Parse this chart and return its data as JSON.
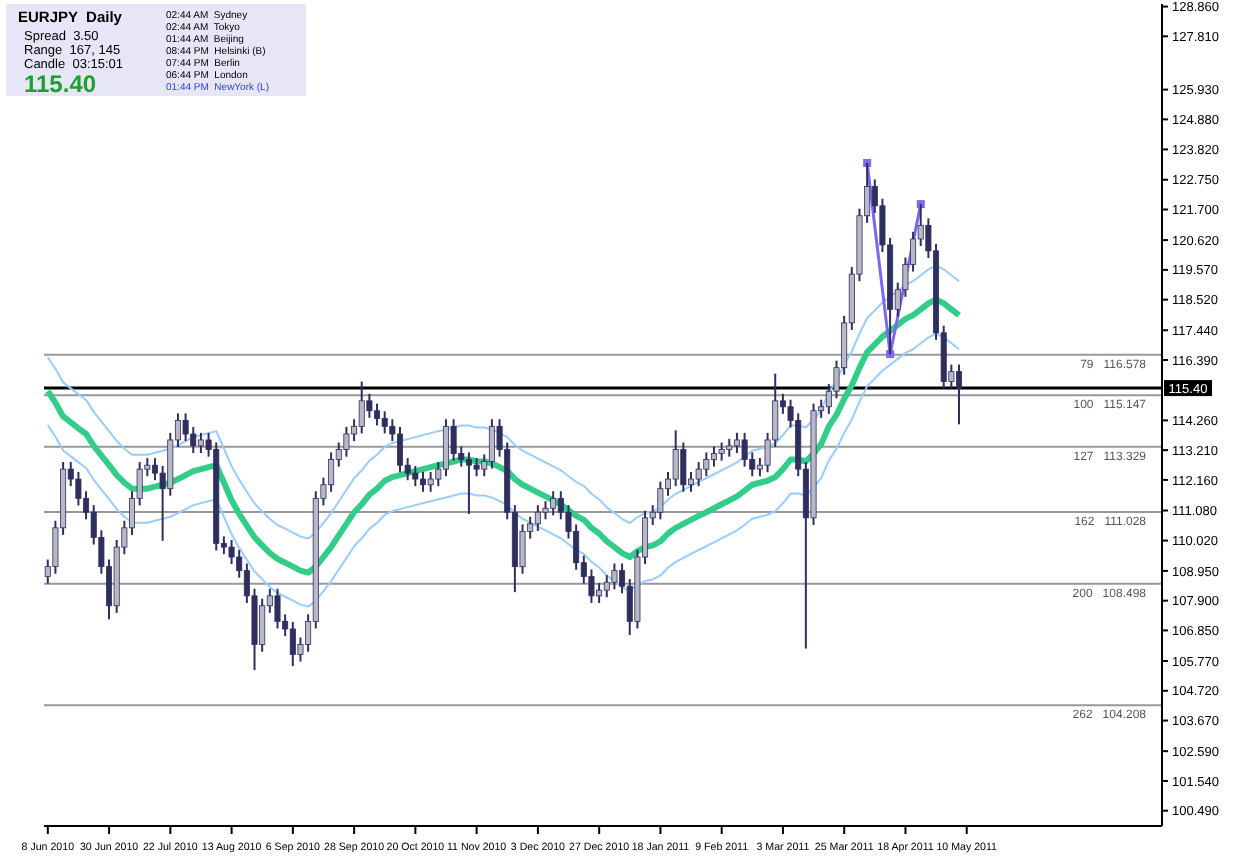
{
  "chart_data": {
    "type": "candlestick",
    "title": "EURJPY  Daily",
    "color": "#2f2f5f",
    "marker": "none",
    "annotations": [
      "Spread  3.50",
      "Range  167, 145",
      "Candle  03:15:01",
      "115.40",
      "02:44 AM  Sydney",
      "02:44 AM  Tokyo",
      "01:44 AM  Beijing",
      "08:44 PM  Helsinki (B)",
      "07:44 PM  Berlin",
      "06:44 PM  London",
      "01:44 PM  NewYork (L)"
    ],
    "categories": [
      "8 Jun 2010",
      null,
      null,
      null,
      null,
      null,
      null,
      null,
      "30 Jun 2010",
      null,
      null,
      null,
      null,
      null,
      null,
      null,
      "22 Jul 2010",
      null,
      null,
      null,
      null,
      null,
      null,
      null,
      "13 Aug 2010",
      null,
      null,
      null,
      null,
      null,
      null,
      null,
      "6 Sep 2010",
      null,
      null,
      null,
      null,
      null,
      null,
      null,
      "28 Sep 2010",
      null,
      null,
      null,
      null,
      null,
      null,
      null,
      "20 Oct 2010",
      null,
      null,
      null,
      null,
      null,
      null,
      null,
      "11 Nov 2010",
      null,
      null,
      null,
      null,
      null,
      null,
      null,
      "3 Dec 2010",
      null,
      null,
      null,
      null,
      null,
      null,
      null,
      "27 Dec 2010",
      null,
      null,
      null,
      null,
      null,
      null,
      null,
      "18 Jan 2011",
      null,
      null,
      null,
      null,
      null,
      null,
      null,
      "9 Feb 2011",
      null,
      null,
      null,
      null,
      null,
      null,
      null,
      "3 Mar 2011",
      null,
      null,
      null,
      null,
      null,
      null,
      null,
      "25 Mar 2011",
      null,
      null,
      null,
      null,
      null,
      null,
      null,
      "18 Apr 2011",
      null,
      null,
      null,
      null,
      null,
      null,
      null,
      "10 May 2011",
      null,
      null,
      null,
      null,
      null,
      null,
      null,
      null,
      null,
      null,
      null,
      null,
      null,
      null,
      null,
      null,
      null,
      null,
      null,
      null,
      null,
      null,
      null,
      null,
      null
    ],
    "ohlc": [
      [
        108.75,
        109.35,
        108.5,
        109.1
      ],
      [
        109.1,
        110.72,
        108.85,
        110.47
      ],
      [
        110.47,
        112.79,
        110.22,
        112.54
      ],
      [
        112.54,
        112.79,
        111.94,
        112.19
      ],
      [
        112.19,
        112.44,
        111.26,
        111.51
      ],
      [
        111.51,
        111.76,
        110.77,
        111.02
      ],
      [
        111.02,
        111.27,
        109.88,
        110.13
      ],
      [
        110.13,
        110.38,
        108.85,
        109.1
      ],
      [
        109.1,
        109.35,
        107.24,
        107.72
      ],
      [
        107.72,
        110.04,
        107.47,
        109.79
      ],
      [
        109.79,
        110.72,
        109.54,
        110.47
      ],
      [
        110.47,
        111.76,
        110.22,
        111.51
      ],
      [
        111.51,
        112.79,
        111.26,
        112.54
      ],
      [
        112.54,
        112.93,
        112.29,
        112.68
      ],
      [
        112.68,
        112.93,
        112.15,
        112.4
      ],
      [
        112.4,
        112.65,
        110.01,
        111.85
      ],
      [
        111.85,
        113.82,
        111.6,
        113.57
      ],
      [
        113.57,
        114.51,
        113.32,
        114.26
      ],
      [
        114.26,
        114.51,
        113.53,
        113.78
      ],
      [
        113.78,
        114.03,
        113.11,
        113.36
      ],
      [
        113.36,
        113.82,
        113.11,
        113.57
      ],
      [
        113.57,
        113.82,
        112.98,
        113.23
      ],
      [
        113.23,
        113.48,
        109.67,
        109.92
      ],
      [
        109.92,
        110.17,
        109.54,
        109.79
      ],
      [
        109.79,
        110.04,
        109.19,
        109.44
      ],
      [
        109.44,
        109.69,
        108.71,
        108.96
      ],
      [
        108.96,
        109.21,
        107.82,
        108.07
      ],
      [
        108.07,
        108.32,
        105.45,
        106.35
      ],
      [
        106.35,
        107.97,
        106.1,
        107.72
      ],
      [
        107.72,
        108.32,
        107.47,
        108.07
      ],
      [
        108.07,
        108.32,
        106.92,
        107.17
      ],
      [
        107.17,
        107.42,
        106.65,
        106.9
      ],
      [
        106.9,
        107.15,
        105.59,
        106.0
      ],
      [
        106.0,
        106.6,
        105.75,
        106.35
      ],
      [
        106.35,
        107.42,
        106.1,
        107.17
      ],
      [
        107.17,
        111.76,
        106.92,
        111.51
      ],
      [
        111.51,
        112.24,
        111.26,
        111.99
      ],
      [
        111.99,
        113.13,
        111.74,
        112.88
      ],
      [
        112.88,
        113.48,
        112.63,
        113.23
      ],
      [
        113.23,
        114.03,
        112.98,
        113.78
      ],
      [
        113.78,
        114.3,
        113.53,
        114.05
      ],
      [
        114.05,
        115.63,
        113.8,
        114.95
      ],
      [
        114.95,
        115.2,
        114.35,
        114.6
      ],
      [
        114.6,
        114.85,
        114.08,
        114.33
      ],
      [
        114.33,
        114.58,
        113.8,
        114.05
      ],
      [
        114.05,
        114.3,
        113.53,
        113.78
      ],
      [
        113.78,
        114.03,
        112.43,
        112.68
      ],
      [
        112.68,
        112.93,
        112.15,
        112.4
      ],
      [
        112.4,
        112.65,
        111.94,
        112.19
      ],
      [
        112.19,
        112.44,
        111.74,
        111.99
      ],
      [
        111.99,
        112.44,
        111.74,
        112.19
      ],
      [
        112.19,
        112.79,
        111.94,
        112.54
      ],
      [
        112.54,
        114.3,
        112.29,
        114.05
      ],
      [
        114.05,
        114.3,
        112.84,
        113.09
      ],
      [
        113.09,
        113.34,
        112.63,
        112.88
      ],
      [
        112.88,
        113.13,
        110.96,
        112.68
      ],
      [
        112.68,
        112.93,
        112.29,
        112.54
      ],
      [
        112.54,
        113.06,
        112.29,
        112.81
      ],
      [
        112.81,
        114.3,
        112.56,
        114.05
      ],
      [
        114.05,
        114.3,
        112.98,
        113.23
      ],
      [
        113.23,
        113.48,
        110.77,
        111.02
      ],
      [
        111.02,
        111.27,
        108.2,
        109.1
      ],
      [
        109.1,
        110.59,
        108.85,
        110.34
      ],
      [
        110.34,
        110.86,
        110.09,
        110.61
      ],
      [
        110.61,
        111.27,
        110.36,
        111.02
      ],
      [
        111.02,
        111.41,
        110.77,
        111.16
      ],
      [
        111.16,
        111.76,
        110.91,
        111.51
      ],
      [
        111.51,
        111.76,
        110.77,
        111.02
      ],
      [
        111.02,
        111.27,
        110.09,
        110.34
      ],
      [
        110.34,
        110.59,
        108.99,
        109.24
      ],
      [
        109.24,
        109.49,
        108.5,
        108.75
      ],
      [
        108.75,
        109.0,
        107.82,
        108.07
      ],
      [
        108.07,
        108.52,
        107.82,
        108.27
      ],
      [
        108.27,
        108.8,
        108.02,
        108.55
      ],
      [
        108.55,
        109.21,
        108.3,
        108.96
      ],
      [
        108.96,
        109.21,
        108.16,
        108.41
      ],
      [
        108.41,
        108.66,
        106.69,
        107.17
      ],
      [
        107.17,
        109.69,
        106.92,
        109.44
      ],
      [
        109.44,
        111.07,
        109.19,
        110.82
      ],
      [
        110.82,
        111.27,
        110.57,
        111.02
      ],
      [
        111.02,
        112.1,
        110.77,
        111.85
      ],
      [
        111.85,
        112.44,
        111.6,
        112.19
      ],
      [
        112.19,
        113.91,
        111.94,
        113.23
      ],
      [
        113.23,
        113.48,
        111.74,
        111.99
      ],
      [
        111.99,
        112.44,
        111.74,
        112.19
      ],
      [
        112.19,
        112.79,
        111.94,
        112.54
      ],
      [
        112.54,
        113.13,
        112.29,
        112.88
      ],
      [
        112.88,
        113.34,
        112.63,
        113.09
      ],
      [
        113.09,
        113.48,
        112.84,
        113.23
      ],
      [
        113.23,
        113.61,
        112.98,
        113.36
      ],
      [
        113.36,
        113.82,
        113.11,
        113.57
      ],
      [
        113.57,
        113.82,
        112.63,
        112.88
      ],
      [
        112.88,
        113.13,
        112.29,
        112.54
      ],
      [
        112.54,
        112.93,
        112.29,
        112.68
      ],
      [
        112.68,
        113.82,
        112.43,
        113.57
      ],
      [
        113.57,
        115.91,
        113.32,
        114.95
      ],
      [
        114.95,
        115.2,
        114.49,
        114.74
      ],
      [
        114.74,
        114.99,
        114.01,
        114.26
      ],
      [
        114.26,
        114.51,
        112.29,
        112.54
      ],
      [
        112.54,
        112.79,
        106.21,
        110.82
      ],
      [
        110.82,
        114.85,
        110.57,
        114.6
      ],
      [
        114.6,
        114.99,
        114.35,
        114.74
      ],
      [
        114.74,
        115.54,
        114.49,
        115.29
      ],
      [
        115.29,
        116.37,
        115.04,
        116.12
      ],
      [
        116.12,
        117.95,
        115.87,
        117.7
      ],
      [
        117.7,
        119.67,
        117.45,
        119.42
      ],
      [
        119.42,
        121.73,
        119.17,
        121.48
      ],
      [
        121.48,
        123.34,
        121.23,
        122.51
      ],
      [
        122.51,
        122.76,
        121.58,
        121.83
      ],
      [
        121.83,
        122.08,
        120.2,
        120.45
      ],
      [
        120.45,
        120.7,
        116.6,
        118.18
      ],
      [
        118.18,
        119.12,
        117.93,
        118.87
      ],
      [
        118.87,
        120.01,
        118.62,
        119.76
      ],
      [
        119.76,
        120.91,
        119.51,
        120.66
      ],
      [
        120.66,
        121.89,
        120.41,
        121.14
      ],
      [
        121.14,
        121.39,
        119.99,
        120.24
      ],
      [
        120.24,
        120.49,
        117.1,
        117.35
      ],
      [
        117.35,
        117.6,
        115.38,
        115.63
      ],
      [
        115.63,
        116.23,
        115.38,
        115.98
      ],
      [
        115.98,
        116.23,
        114.12,
        115.4
      ],
      null,
      null,
      null,
      null,
      null,
      null,
      null,
      null,
      null,
      null,
      null,
      null,
      null,
      null,
      null,
      null,
      null,
      null,
      null,
      null,
      null,
      null,
      null,
      null,
      null,
      null
    ],
    "series": [
      {
        "type": "line",
        "color": "#99ccff",
        "values": [
          116.49,
          116.08,
          115.6,
          115.39,
          115.18,
          114.98,
          114.56,
          114.22,
          113.88,
          113.53,
          113.26,
          113.05,
          113.05,
          113.05,
          113.12,
          113.19,
          113.26,
          113.39,
          113.53,
          113.67,
          113.74,
          113.81,
          113.88,
          113.26,
          112.64,
          112.16,
          111.74,
          111.33,
          111.05,
          110.78,
          110.57,
          110.44,
          110.3,
          110.16,
          110.09,
          110.3,
          110.64,
          110.99,
          111.4,
          111.81,
          112.22,
          112.5,
          112.84,
          113.05,
          113.33,
          113.46,
          113.53,
          113.6,
          113.67,
          113.74,
          113.81,
          113.88,
          113.94,
          114.01,
          114.08,
          114.08,
          114.01,
          114.01,
          113.94,
          113.81,
          113.67,
          113.39,
          113.19,
          113.05,
          112.91,
          112.78,
          112.64,
          112.5,
          112.29,
          112.09,
          111.95,
          111.67,
          111.47,
          111.19,
          110.99,
          110.78,
          110.64,
          110.85,
          110.99,
          111.05,
          111.19,
          111.47,
          111.67,
          111.81,
          111.95,
          112.09,
          112.22,
          112.36,
          112.5,
          112.64,
          112.78,
          112.98,
          113.19,
          113.26,
          113.33,
          113.46,
          113.74,
          114.08,
          114.08,
          114.01,
          114.29,
          114.63,
          115.25,
          115.66,
          116.22,
          116.7,
          117.32,
          117.87,
          118.14,
          118.42,
          118.62,
          118.83,
          119.04,
          119.17,
          119.38,
          119.59,
          119.72,
          119.59,
          119.38,
          119.17,
          null,
          null,
          null,
          null,
          null,
          null,
          null,
          null,
          null,
          null,
          null,
          null,
          null,
          null,
          null,
          null,
          null,
          null,
          null,
          null,
          null,
          null,
          null,
          null,
          null,
          null
        ]
      },
      {
        "type": "line",
        "color": "#33cc88",
        "values": [
          115.29,
          114.88,
          114.4,
          114.19,
          113.98,
          113.78,
          113.36,
          113.02,
          112.68,
          112.33,
          112.06,
          111.85,
          111.85,
          111.85,
          111.92,
          111.99,
          112.06,
          112.19,
          112.33,
          112.47,
          112.54,
          112.61,
          112.68,
          112.06,
          111.44,
          110.96,
          110.54,
          110.13,
          109.85,
          109.58,
          109.37,
          109.24,
          109.1,
          108.96,
          108.89,
          109.1,
          109.44,
          109.79,
          110.2,
          110.61,
          111.02,
          111.3,
          111.64,
          111.85,
          112.13,
          112.26,
          112.33,
          112.4,
          112.47,
          112.54,
          112.61,
          112.68,
          112.74,
          112.81,
          112.88,
          112.88,
          112.81,
          112.81,
          112.74,
          112.61,
          112.47,
          112.19,
          111.99,
          111.85,
          111.71,
          111.58,
          111.44,
          111.3,
          111.09,
          110.89,
          110.75,
          110.47,
          110.27,
          109.99,
          109.79,
          109.58,
          109.44,
          109.65,
          109.79,
          109.85,
          109.99,
          110.27,
          110.47,
          110.61,
          110.75,
          110.89,
          111.02,
          111.16,
          111.3,
          111.44,
          111.58,
          111.78,
          111.99,
          112.06,
          112.13,
          112.26,
          112.54,
          112.88,
          112.88,
          112.81,
          113.09,
          113.43,
          114.05,
          114.46,
          115.02,
          115.5,
          116.12,
          116.67,
          116.94,
          117.22,
          117.42,
          117.63,
          117.84,
          117.97,
          118.18,
          118.39,
          118.52,
          118.39,
          118.18,
          117.97,
          null,
          null,
          null,
          null,
          null,
          null,
          null,
          null,
          null,
          null,
          null,
          null,
          null,
          null,
          null,
          null,
          null,
          null,
          null,
          null,
          null,
          null,
          null,
          null,
          null,
          null
        ]
      },
      {
        "type": "line",
        "color": "#99ccff",
        "values": [
          114.09,
          113.68,
          113.2,
          112.99,
          112.78,
          112.58,
          112.16,
          111.82,
          111.48,
          111.13,
          110.86,
          110.65,
          110.65,
          110.65,
          110.72,
          110.79,
          110.86,
          110.99,
          111.13,
          111.27,
          111.34,
          111.41,
          111.48,
          110.86,
          110.24,
          109.76,
          109.34,
          108.93,
          108.65,
          108.38,
          108.17,
          108.04,
          107.9,
          107.76,
          107.69,
          107.9,
          108.24,
          108.59,
          109.0,
          109.41,
          109.82,
          110.1,
          110.44,
          110.65,
          110.93,
          111.06,
          111.13,
          111.2,
          111.27,
          111.34,
          111.41,
          111.48,
          111.54,
          111.61,
          111.68,
          111.68,
          111.61,
          111.61,
          111.54,
          111.41,
          111.27,
          110.99,
          110.79,
          110.65,
          110.51,
          110.38,
          110.24,
          110.1,
          109.89,
          109.69,
          109.55,
          109.27,
          109.07,
          108.79,
          108.59,
          108.38,
          108.24,
          108.45,
          108.59,
          108.65,
          108.79,
          109.07,
          109.27,
          109.41,
          109.55,
          109.69,
          109.82,
          109.96,
          110.1,
          110.24,
          110.38,
          110.58,
          110.79,
          110.86,
          110.93,
          111.06,
          111.34,
          111.68,
          111.68,
          111.61,
          111.89,
          112.23,
          112.85,
          113.26,
          113.82,
          114.3,
          114.92,
          115.47,
          115.74,
          116.02,
          116.22,
          116.43,
          116.64,
          116.77,
          116.98,
          117.19,
          117.32,
          117.19,
          116.98,
          116.77,
          null,
          null,
          null,
          null,
          null,
          null,
          null,
          null,
          null,
          null,
          null,
          null,
          null,
          null,
          null,
          null,
          null,
          null,
          null,
          null,
          null,
          null,
          null,
          null,
          null,
          null
        ]
      },
      {
        "type": "line",
        "color": "#7b68ee",
        "marker": "square",
        "values": [
          null,
          null,
          null,
          null,
          null,
          null,
          null,
          null,
          null,
          null,
          null,
          null,
          null,
          null,
          null,
          null,
          null,
          null,
          null,
          null,
          null,
          null,
          null,
          null,
          null,
          null,
          null,
          null,
          null,
          null,
          null,
          null,
          null,
          null,
          null,
          null,
          null,
          null,
          null,
          null,
          null,
          null,
          null,
          null,
          null,
          null,
          null,
          null,
          null,
          null,
          null,
          null,
          null,
          null,
          null,
          null,
          null,
          null,
          null,
          null,
          null,
          null,
          null,
          null,
          null,
          null,
          null,
          null,
          null,
          null,
          null,
          null,
          null,
          null,
          null,
          null,
          null,
          null,
          null,
          null,
          null,
          null,
          null,
          null,
          null,
          null,
          null,
          null,
          null,
          null,
          null,
          null,
          null,
          null,
          null,
          null,
          null,
          null,
          null,
          null,
          null,
          null,
          null,
          null,
          null,
          null,
          null,
          123.34,
          null,
          null,
          116.6,
          null,
          null,
          null,
          121.89,
          null,
          null,
          null,
          null,
          null,
          null,
          null,
          null,
          null,
          null,
          null,
          null,
          null,
          null,
          null,
          null,
          null,
          null,
          null,
          null,
          null,
          null,
          null,
          null,
          null,
          null,
          null,
          null,
          null,
          null,
          null
        ]
      }
    ],
    "ref_lines": [
      {
        "axis": "y",
        "value": 115.4,
        "label": "115.40",
        "color": "#000000"
      },
      {
        "axis": "y",
        "value": 116.578,
        "label": "79   116.578",
        "color": "#999999"
      },
      {
        "axis": "y",
        "value": 115.147,
        "label": "100   115.147",
        "color": "#999999"
      },
      {
        "axis": "y",
        "value": 113.329,
        "label": "127   113.329",
        "color": "#999999"
      },
      {
        "axis": "y",
        "value": 111.028,
        "label": "162   111.028",
        "color": "#999999"
      },
      {
        "axis": "y",
        "value": 108.498,
        "label": "200   108.498",
        "color": "#999999"
      },
      {
        "axis": "y",
        "value": 104.208,
        "label": "262   104.208",
        "color": "#999999"
      }
    ],
    "ylim": [
      99.95,
      128.95
    ],
    "yticks": [
      {
        "value": 128.86,
        "label": "128.860"
      },
      {
        "value": 127.81,
        "label": "127.810"
      },
      {
        "value": 125.93,
        "label": "125.930"
      },
      {
        "value": 124.88,
        "label": "124.880"
      },
      {
        "value": 123.82,
        "label": "123.820"
      },
      {
        "value": 122.75,
        "label": "122.750"
      },
      {
        "value": 121.7,
        "label": "121.700"
      },
      {
        "value": 120.62,
        "label": "120.620"
      },
      {
        "value": 119.57,
        "label": "119.570"
      },
      {
        "value": 118.52,
        "label": "118.520"
      },
      {
        "value": 117.44,
        "label": "117.440"
      },
      {
        "value": 116.39,
        "label": "116.390"
      },
      {
        "value": 114.26,
        "label": "114.260"
      },
      {
        "value": 113.21,
        "label": "113.210"
      },
      {
        "value": 112.16,
        "label": "112.160"
      },
      {
        "value": 111.08,
        "label": "111.080"
      },
      {
        "value": 110.02,
        "label": "110.020"
      },
      {
        "value": 108.95,
        "label": "108.950"
      },
      {
        "value": 107.9,
        "label": "107.900"
      },
      {
        "value": 106.85,
        "label": "106.850"
      },
      {
        "value": 105.77,
        "label": "105.770"
      },
      {
        "value": 104.72,
        "label": "104.720"
      },
      {
        "value": 103.67,
        "label": "103.670"
      },
      {
        "value": 102.59,
        "label": "102.590"
      },
      {
        "value": 101.54,
        "label": "101.540"
      },
      {
        "value": 100.49,
        "label": "100.490"
      }
    ]
  }
}
